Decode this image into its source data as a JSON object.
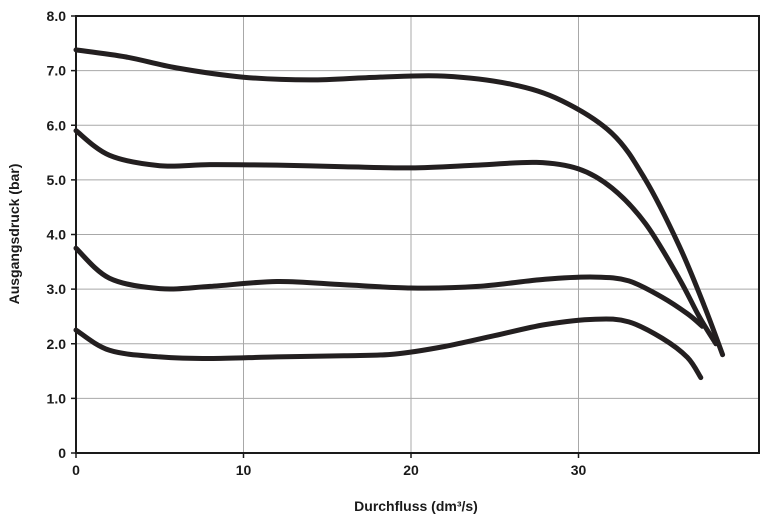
{
  "chart_data": {
    "type": "line",
    "title": "",
    "xlabel": "Durchfluss (dm³/s)",
    "ylabel": "Ausgangsdruck (bar)",
    "xlim": [
      0,
      40
    ],
    "ylim": [
      0,
      8
    ],
    "x_ticks": [
      0,
      10,
      20,
      30
    ],
    "x_tick_labels": [
      "0",
      "10",
      "20",
      "30"
    ],
    "y_ticks": [
      0,
      1,
      2,
      3,
      4,
      5,
      6,
      7,
      8
    ],
    "y_tick_labels": [
      "0",
      "1.0",
      "2.0",
      "3.0",
      "4.0",
      "5.0",
      "6.0",
      "7.0",
      "8.0"
    ],
    "grid": true,
    "legend": "none",
    "line_color": "#231f20",
    "series": [
      {
        "x": [
          0,
          3,
          6,
          10,
          14,
          18,
          22,
          26,
          29,
          32,
          34,
          36,
          37.5,
          38.6
        ],
        "y": [
          7.38,
          7.25,
          7.05,
          6.88,
          6.83,
          6.88,
          6.9,
          6.75,
          6.45,
          5.85,
          5.0,
          3.8,
          2.7,
          1.8
        ]
      },
      {
        "x": [
          0,
          2,
          5,
          8,
          12,
          16,
          20,
          24,
          27.5,
          30,
          32,
          34,
          36,
          37.2,
          38.2
        ],
        "y": [
          5.9,
          5.45,
          5.26,
          5.28,
          5.27,
          5.24,
          5.22,
          5.27,
          5.32,
          5.2,
          4.85,
          4.2,
          3.2,
          2.5,
          2.0
        ]
      },
      {
        "x": [
          0,
          2,
          5,
          8,
          12,
          16,
          20,
          24,
          28,
          31,
          33,
          35,
          36.5,
          37.4
        ],
        "y": [
          3.75,
          3.2,
          3.01,
          3.05,
          3.14,
          3.08,
          3.02,
          3.05,
          3.18,
          3.22,
          3.15,
          2.85,
          2.55,
          2.32
        ]
      },
      {
        "x": [
          0,
          2,
          5,
          8,
          12,
          16,
          19,
          22,
          25,
          28,
          31,
          33,
          35,
          36.5,
          37.3
        ],
        "y": [
          2.25,
          1.88,
          1.76,
          1.73,
          1.76,
          1.78,
          1.81,
          1.95,
          2.15,
          2.35,
          2.45,
          2.4,
          2.1,
          1.75,
          1.38
        ]
      }
    ]
  }
}
